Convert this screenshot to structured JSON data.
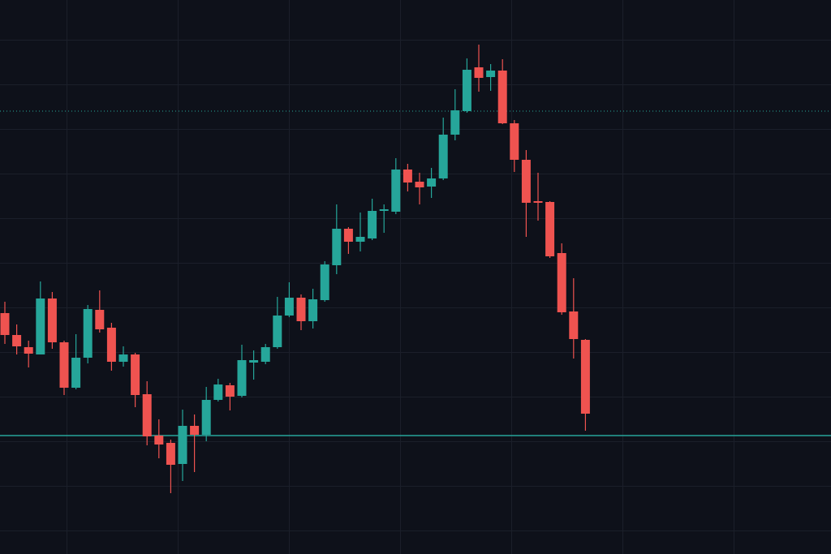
{
  "chart_data": {
    "type": "candlestick",
    "ylim": [
      0,
      683
    ],
    "up_color": "#26a69a",
    "down_color": "#ef5350",
    "open": [
      297,
      270,
      255,
      246,
      315,
      261,
      205,
      242,
      301,
      279,
      237,
      246,
      197,
      146,
      137,
      111,
      158,
      147,
      190,
      208,
      195,
      236,
      237,
      255,
      294,
      316,
      287,
      313,
      356,
      401,
      385,
      389,
      423,
      422,
      474,
      459,
      453,
      463,
      517,
      546,
      600,
      588,
      596,
      531,
      486,
      435,
      434,
      371,
      299,
      264
    ],
    "high": [
      311,
      283,
      263,
      336,
      323,
      263,
      271,
      307,
      325,
      285,
      256,
      248,
      213,
      166,
      141,
      178,
      172,
      206,
      216,
      211,
      258,
      251,
      259,
      317,
      335,
      320,
      327,
      361,
      431,
      403,
      421,
      438,
      431,
      488,
      481,
      470,
      476,
      538,
      573,
      611,
      628,
      604,
      610,
      535,
      498,
      470,
      435,
      383,
      340,
      265
    ],
    "low": [
      259,
      246,
      230,
      246,
      253,
      196,
      203,
      235,
      273,
      226,
      231,
      181,
      134,
      118,
      75,
      90,
      101,
      139,
      188,
      177,
      193,
      215,
      234,
      253,
      292,
      276,
      278,
      311,
      345,
      370,
      373,
      387,
      396,
      419,
      447,
      431,
      439,
      461,
      510,
      544,
      570,
      571,
      530,
      471,
      391,
      411,
      365,
      295,
      241,
      152
    ],
    "close": [
      270,
      256,
      247,
      315,
      261,
      205,
      242,
      302,
      277,
      237,
      246,
      196,
      145,
      135,
      110,
      158,
      147,
      190,
      209,
      194,
      239,
      239,
      255,
      294,
      316,
      287,
      314,
      357,
      401,
      385,
      391,
      423,
      425,
      474,
      458,
      452,
      463,
      517,
      547,
      597,
      587,
      596,
      531,
      486,
      433,
      433,
      367,
      298,
      265,
      173
    ],
    "levels": [
      {
        "value": 146,
        "style": "solid",
        "color": "#26a69a"
      },
      {
        "value": 546,
        "style": "dotted",
        "color": "#26a69a"
      }
    ]
  }
}
